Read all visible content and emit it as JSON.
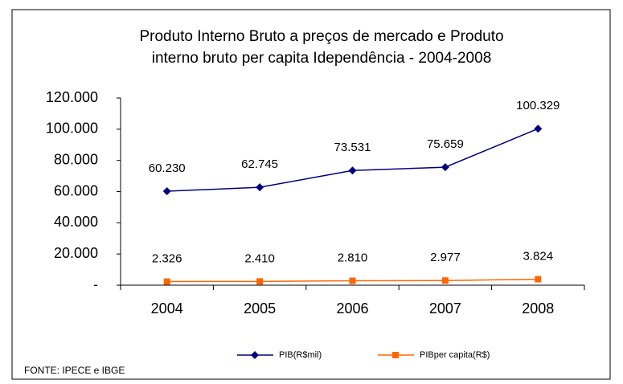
{
  "chart_data": {
    "type": "line",
    "title": [
      "Produto Interno Bruto a preços de mercado e  Produto",
      "interno bruto per capita Idependência - 2004-2008"
    ],
    "categories": [
      "2004",
      "2005",
      "2006",
      "2007",
      "2008"
    ],
    "series": [
      {
        "name": "PIB(R$mil)",
        "color": "#000080",
        "marker": "diamond",
        "values": [
          60230,
          62745,
          73531,
          75659,
          100329
        ],
        "value_labels": [
          "60.230",
          "62.745",
          "73.531",
          "75.659",
          "100.329"
        ]
      },
      {
        "name": "PIBper capita(R$)",
        "color": "#ff6600",
        "marker": "square",
        "values": [
          2326,
          2410,
          2810,
          2977,
          3824
        ],
        "value_labels": [
          "2.326",
          "2.410",
          "2.810",
          "2.977",
          "3.824"
        ]
      }
    ],
    "ylim": [
      0,
      120000
    ],
    "yticks": [
      {
        "value": 0,
        "label": "-"
      },
      {
        "value": 20000,
        "label": "20.000"
      },
      {
        "value": 40000,
        "label": "40.000"
      },
      {
        "value": 60000,
        "label": "60.000"
      },
      {
        "value": 80000,
        "label": "80.000"
      },
      {
        "value": 100000,
        "label": "100.000"
      },
      {
        "value": 120000,
        "label": "120.000"
      }
    ],
    "grid": false,
    "legend": "bottom",
    "source": "FONTE: IPECE e IBGE"
  }
}
